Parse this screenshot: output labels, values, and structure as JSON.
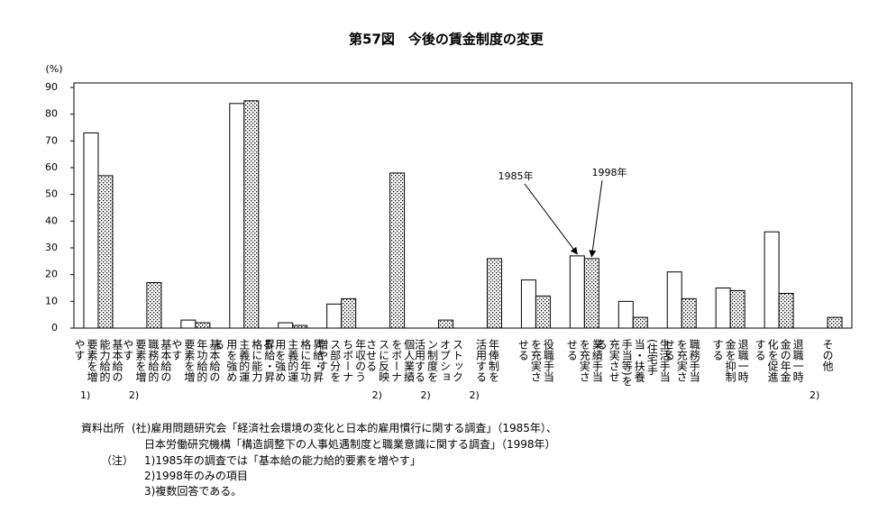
{
  "chart_data": {
    "type": "bar",
    "title": "第57図　今後の賃金制度の変更",
    "y_unit": "(%)",
    "categories": [
      "基本給の能力給的要素を増やす",
      "基本給の職務給的要素を増やす",
      "基本給の年功給的要素を増やす",
      "昇給・昇格に能力主義的運用を強める",
      "昇給・昇格に年功主義的運用を強める",
      "年収のうちボーナス部分を増やす",
      "個人業績をボーナスに反映させる",
      "ストックオプション制度を活用する",
      "年俸制を活用する",
      "役職手当を充実させる",
      "業績手当を充実させる",
      "生活手当(住宅手当・扶養手当等)を充実させる",
      "職務手当を充実させる",
      "退職一時金を抑制する",
      "退職一時金の年金化を促進する",
      "その他"
    ],
    "category_notes": [
      "1)",
      "2)",
      null,
      null,
      null,
      null,
      "2)",
      "2)",
      "2)",
      null,
      null,
      null,
      null,
      null,
      null,
      "2)"
    ],
    "series": [
      {
        "name": "1985年",
        "color": "#ffffff",
        "pattern": "none",
        "values": [
          73,
          null,
          3,
          84,
          2,
          9,
          null,
          null,
          null,
          18,
          27,
          10,
          21,
          15,
          36,
          null
        ]
      },
      {
        "name": "1998年",
        "color": "#ffffff",
        "pattern": "dots",
        "values": [
          57,
          17,
          2,
          85,
          1,
          11,
          58,
          3,
          26,
          12,
          26,
          4,
          11,
          14,
          13,
          4
        ]
      }
    ],
    "annotation_category": 10,
    "ylim": [
      0,
      90
    ],
    "yticks": [
      0,
      10,
      20,
      30,
      40,
      50,
      60,
      70,
      80,
      90
    ],
    "grid": false,
    "source": {
      "label": "資料出所",
      "lines": [
        "(社)雇用問題研究会「経済社会環境の変化と日本的雇用慣行に関する調査」（1985年）、",
        "日本労働研究機構「構造調整下の人事処遇制度と職業意識に関する調査」（1998年）"
      ]
    },
    "notes": {
      "label": "（注）",
      "lines": [
        "1)1985年の調査では「基本給の能力給的要素を増やす」",
        "2)1998年のみの項目",
        "3)複数回答である。"
      ]
    }
  }
}
